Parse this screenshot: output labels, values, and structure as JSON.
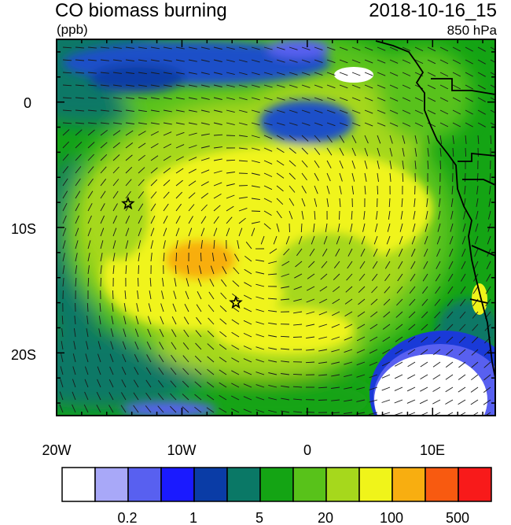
{
  "header": {
    "title": "CO biomass burning",
    "units": "(ppb)",
    "datetime": "2018-10-16_15",
    "level": "850 hPa"
  },
  "axes": {
    "lon_labels": [
      "20W",
      "10W",
      "0",
      "10E"
    ],
    "lat_labels": [
      "0",
      "10S",
      "20S"
    ],
    "lon_range": [
      -20,
      15
    ],
    "lat_range": [
      -25,
      5
    ]
  },
  "colorbar": {
    "colors": [
      "#ffffff",
      "#a8a8f8",
      "#5860f0",
      "#1a1aff",
      "#0a3ca6",
      "#0a7866",
      "#14a414",
      "#58c21a",
      "#a6d81c",
      "#f0f41a",
      "#f8ae10",
      "#f85a10",
      "#f81a1a"
    ],
    "labels": [
      "0.2",
      "1",
      "5",
      "20",
      "100",
      "500"
    ]
  },
  "markers": [
    {
      "name": "star-marker-west",
      "lon": -14.3,
      "lat": -8.1
    },
    {
      "name": "star-marker-south",
      "lon": -5.7,
      "lat": -16.0
    }
  ],
  "map_layers": {
    "field": "CO biomass burning concentration (ppb)",
    "vectors": "wind barbs",
    "land_outline": "west Africa coastline and borders"
  }
}
